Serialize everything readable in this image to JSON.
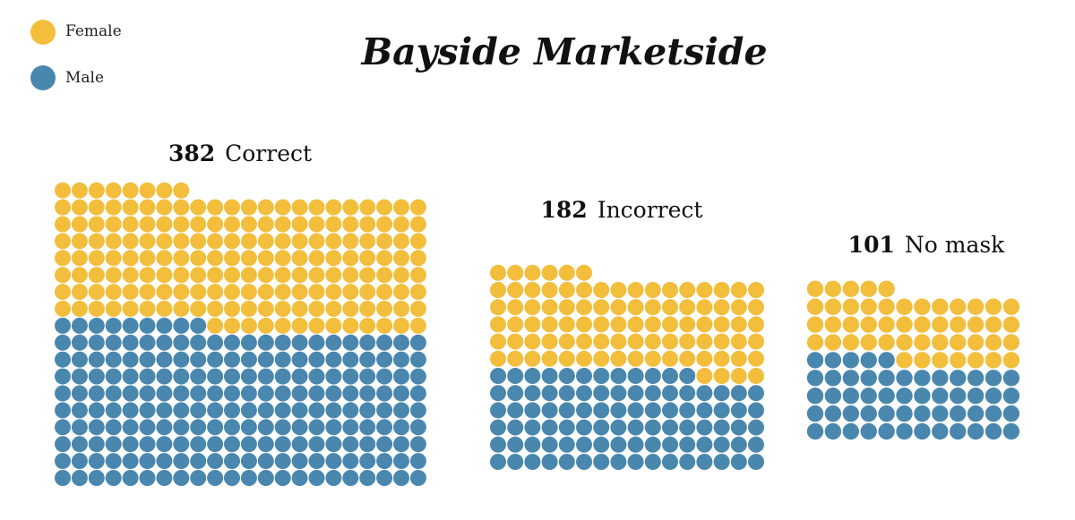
{
  "chart_data": {
    "type": "waffle",
    "title": "Bayside Marketside",
    "legend": {
      "placement": "top-left",
      "entries": [
        {
          "name": "Female",
          "color": "#F2BE3C"
        },
        {
          "name": "Male",
          "color": "#4A87AE"
        }
      ]
    },
    "groups": [
      {
        "count": "382",
        "label": "Correct",
        "columns": 22,
        "female": 175,
        "male": 207
      },
      {
        "count": "182",
        "label": "Incorrect",
        "columns": 16,
        "female": 90,
        "male": 92
      },
      {
        "count": "101",
        "label": "No mask",
        "columns": 12,
        "female": 48,
        "male": 53
      }
    ]
  }
}
